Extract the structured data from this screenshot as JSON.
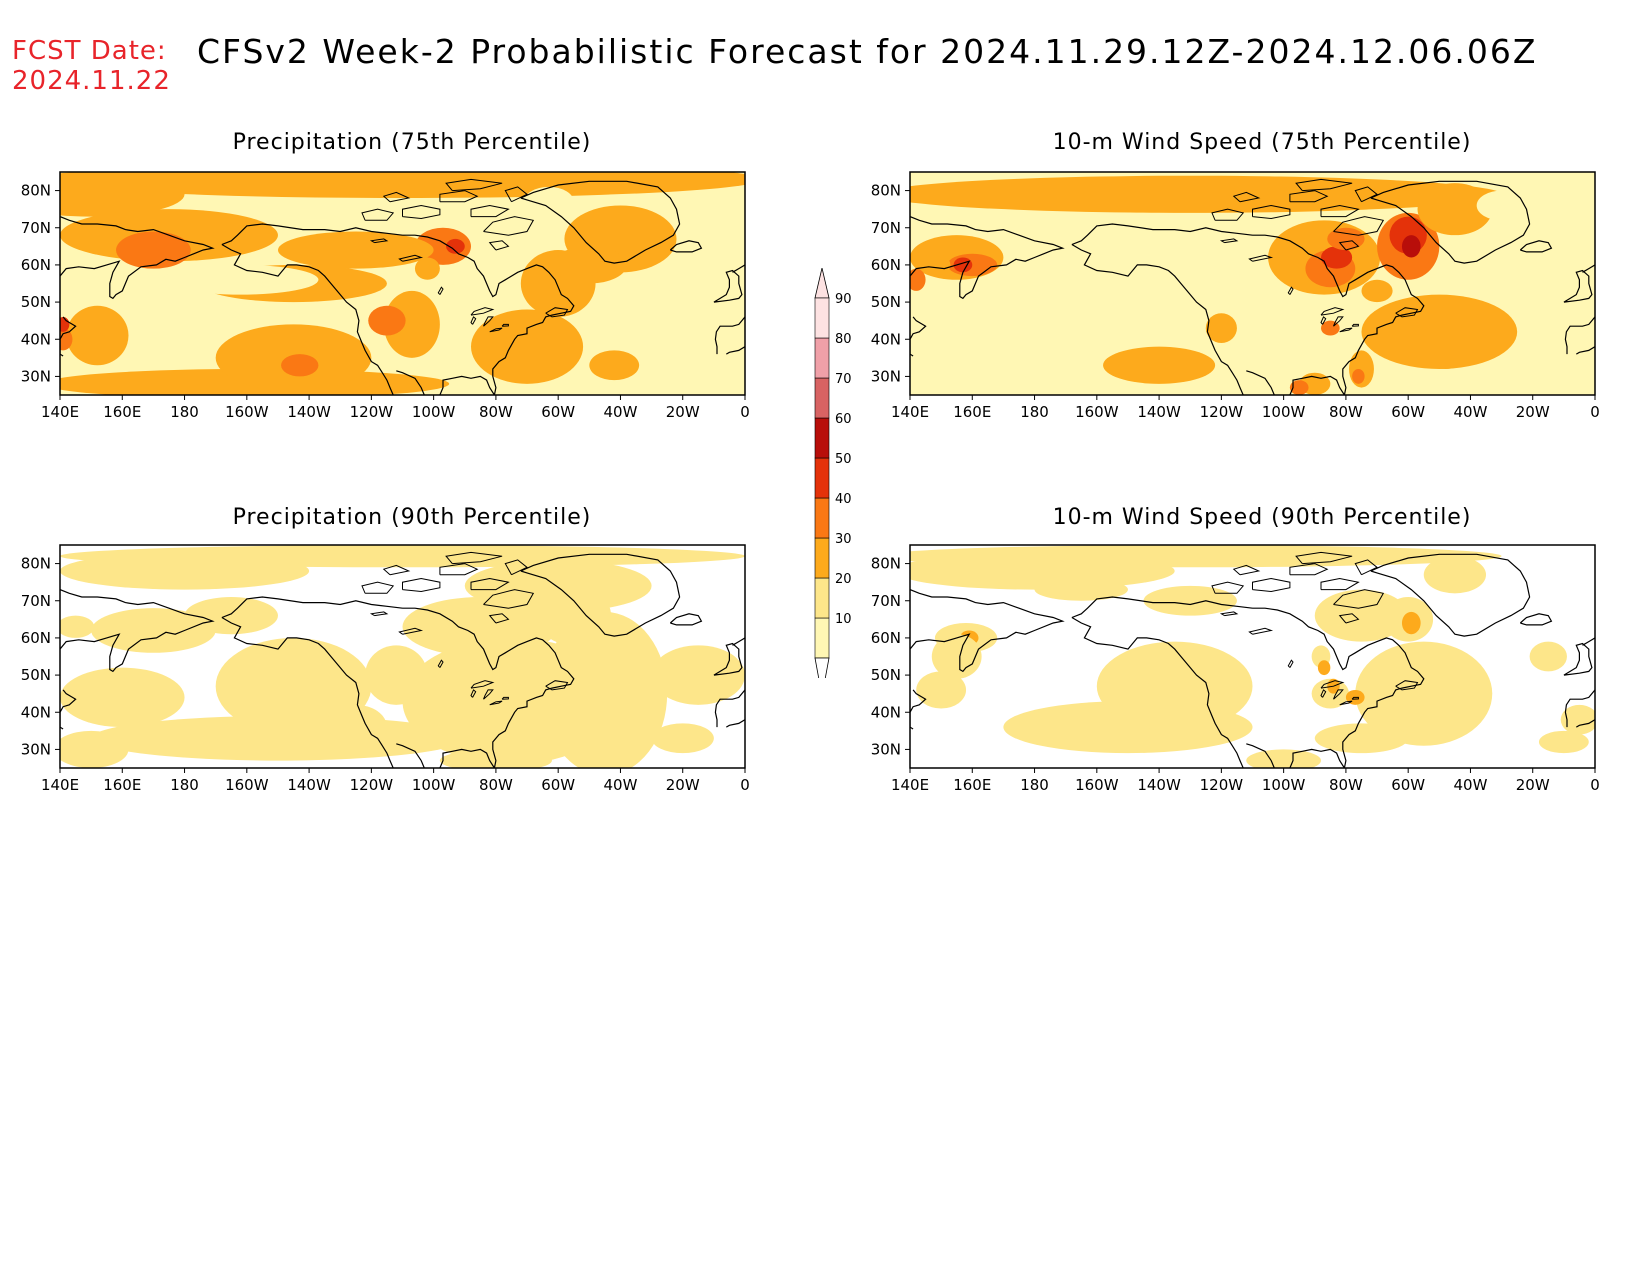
{
  "header": {
    "fcst_label": "FCST Date:",
    "fcst_date": "2024.11.22",
    "title": "CFSv2 Week-2 Probabilistic Forecast for 2024.11.29.12Z-2024.12.06.06Z"
  },
  "panels": [
    {
      "id": "precip75",
      "title": "Precipitation (75th Percentile)"
    },
    {
      "id": "wind75",
      "title": "10-m Wind Speed (75th Percentile)"
    },
    {
      "id": "precip90",
      "title": "Precipitation (90th Percentile)"
    },
    {
      "id": "wind90",
      "title": "10-m Wind Speed (90th Percentile)"
    }
  ],
  "axes": {
    "lon_labels": [
      "140E",
      "160E",
      "180",
      "160W",
      "140W",
      "120W",
      "100W",
      "80W",
      "60W",
      "40W",
      "20W",
      "0"
    ],
    "lat_labels": [
      "80N",
      "70N",
      "60N",
      "50N",
      "40N",
      "30N"
    ],
    "lon_range_deg_east": [
      140,
      360
    ],
    "lat_range_deg_north": [
      25,
      85
    ]
  },
  "colorbar": {
    "labels": [
      "10",
      "20",
      "30",
      "40",
      "50",
      "60",
      "70",
      "80",
      "90"
    ],
    "colors": [
      "#fff7b4",
      "#fde68a",
      "#fdaa1c",
      "#fa7814",
      "#e4320a",
      "#b80e0a",
      "#d86363",
      "#f0a0a8",
      "#fde2e2"
    ]
  },
  "map_features": {
    "coastline": "Asia, North America, Greenland, Europe",
    "colors": {
      "background": "#ffffff",
      "coastline": "#000000"
    }
  }
}
